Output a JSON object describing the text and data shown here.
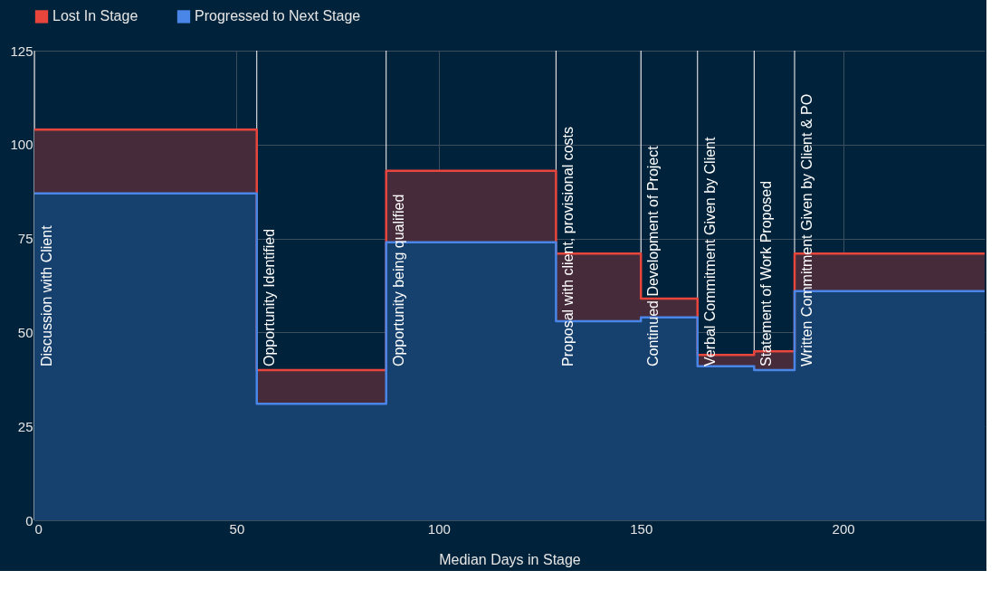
{
  "chart_data": {
    "type": "area",
    "xlabel": "Median Days in Stage",
    "x": [
      0,
      55,
      55,
      87,
      87,
      129,
      129,
      150,
      150,
      164,
      164,
      178,
      178,
      188,
      188,
      235
    ],
    "series": [
      {
        "name": "Lost In Stage",
        "color": "#e8453c",
        "values": [
          104,
          104,
          40,
          40,
          93,
          93,
          71,
          71,
          59,
          59,
          44,
          44,
          45,
          45,
          71,
          71
        ]
      },
      {
        "name": "Progressed to Next Stage",
        "color": "#4a86e8",
        "values": [
          87,
          87,
          31,
          31,
          74,
          74,
          53,
          53,
          54,
          54,
          41,
          41,
          40,
          40,
          61,
          61
        ]
      }
    ],
    "xlim": [
      0,
      235
    ],
    "xticks": [
      0,
      50,
      100,
      150,
      200
    ],
    "ylim": [
      0,
      125
    ],
    "yticks": [
      0,
      25,
      50,
      75,
      100,
      125
    ],
    "grid": true,
    "legend": "top",
    "ref_lines": [
      {
        "axis": "x",
        "value": 0,
        "label": "Discussion with Client",
        "color": "#ffffff"
      },
      {
        "axis": "x",
        "value": 55,
        "label": "Opportunity Identified",
        "color": "#ffffff"
      },
      {
        "axis": "x",
        "value": 87,
        "label": "Opportunity being qualified",
        "color": "#ffffff"
      },
      {
        "axis": "x",
        "value": 129,
        "label": "Proposal with client, provisional costs",
        "color": "#ffffff"
      },
      {
        "axis": "x",
        "value": 150,
        "label": "Continued Development of Project",
        "color": "#ffffff"
      },
      {
        "axis": "x",
        "value": 164,
        "label": "Verbal Commitment Given by Client",
        "color": "#ffffff"
      },
      {
        "axis": "x",
        "value": 178,
        "label": "Statement of Work Proposed",
        "color": "#ffffff"
      },
      {
        "axis": "x",
        "value": 188,
        "label": "Written Commitment Given by Client & PO",
        "color": "#ffffff"
      }
    ]
  }
}
